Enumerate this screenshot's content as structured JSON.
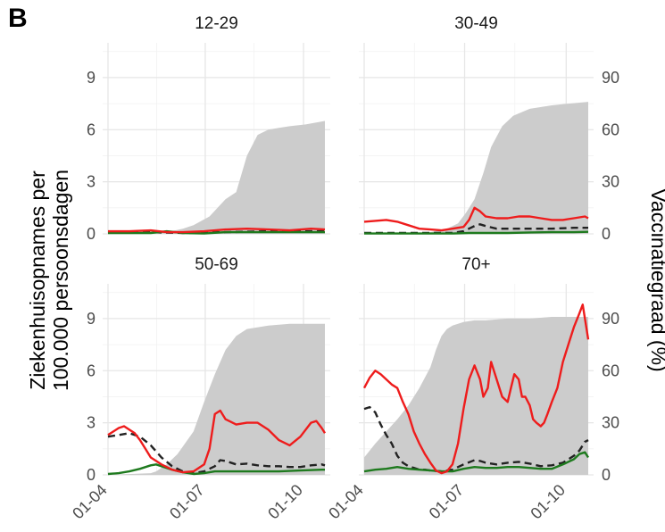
{
  "panel_label": "B",
  "colors": {
    "vaccination_fill": "#cccccc",
    "hospital_unvaccinated": "#ee1c1c",
    "hospital_all": "#222222",
    "hospital_vaccinated": "#1e7a1e",
    "grid": "#e6e6e6"
  },
  "chart_data": {
    "type": "line",
    "title": "",
    "xlabel": "",
    "ylabel": "Ziekenhuisopnames per 100.000 persoonsdagen",
    "ylabel_lines": [
      "Ziekenhuisopnames per",
      "100.000 persoonsdagen"
    ],
    "y2label": "Vaccinatiegraad (%)",
    "x_ticks": [
      "01-04",
      "01-07",
      "01-10"
    ],
    "y_ticks": [
      "0",
      "3",
      "6",
      "9"
    ],
    "y2_ticks": [
      "0",
      "30",
      "60",
      "90"
    ],
    "ylim": [
      0,
      11
    ],
    "y2lim": [
      0,
      110
    ],
    "x_range_days": [
      0,
      203
    ],
    "x_tick_days": [
      0,
      91,
      183
    ],
    "legend": "none",
    "grid": true,
    "facets": [
      {
        "title": "12-29",
        "vaccination_area": {
          "x": [
            0,
            40,
            55,
            70,
            80,
            95,
            110,
            120,
            130,
            140,
            150,
            160,
            170,
            185,
            203
          ],
          "y": [
            0,
            0,
            1,
            3,
            5,
            10,
            20,
            24,
            45,
            57,
            60,
            61,
            62,
            63,
            65
          ]
        },
        "series": [
          {
            "key": "unvaccinated",
            "x": [
              0,
              20,
              40,
              55,
              70,
              90,
              110,
              130,
              150,
              170,
              190,
              203
            ],
            "y": [
              0.15,
              0.15,
              0.2,
              0.1,
              0.1,
              0.15,
              0.25,
              0.3,
              0.25,
              0.2,
              0.3,
              0.25
            ]
          },
          {
            "key": "all",
            "x": [
              0,
              40,
              70,
              110,
              150,
              203
            ],
            "y": [
              0.1,
              0.1,
              0.05,
              0.1,
              0.15,
              0.15
            ]
          },
          {
            "key": "vaccinated",
            "x": [
              0,
              40,
              55,
              70,
              90,
              110,
              150,
              203
            ],
            "y": [
              0.05,
              0.05,
              0.15,
              0.05,
              0.02,
              0.1,
              0.1,
              0.1
            ]
          }
        ]
      },
      {
        "title": "30-49",
        "vaccination_area": {
          "x": [
            0,
            50,
            60,
            75,
            85,
            92,
            100,
            108,
            115,
            125,
            135,
            150,
            170,
            185,
            203
          ],
          "y": [
            0,
            0,
            1,
            3,
            6,
            12,
            20,
            35,
            50,
            62,
            68,
            72,
            74,
            75,
            76
          ]
        },
        "series": [
          {
            "key": "unvaccinated",
            "x": [
              0,
              10,
              20,
              30,
              40,
              50,
              60,
              70,
              80,
              90,
              95,
              100,
              105,
              110,
              120,
              130,
              140,
              150,
              160,
              170,
              180,
              190,
              200,
              203
            ],
            "y": [
              0.7,
              0.75,
              0.8,
              0.7,
              0.5,
              0.3,
              0.25,
              0.2,
              0.3,
              0.4,
              0.8,
              1.5,
              1.3,
              1.0,
              0.9,
              0.9,
              1.0,
              1.0,
              0.9,
              0.8,
              0.8,
              0.9,
              1.0,
              0.9
            ]
          },
          {
            "key": "all",
            "x": [
              0,
              40,
              60,
              80,
              90,
              100,
              105,
              110,
              120,
              130,
              150,
              170,
              190,
              203
            ],
            "y": [
              0.05,
              0.05,
              0.05,
              0.05,
              0.15,
              0.45,
              0.55,
              0.45,
              0.3,
              0.3,
              0.3,
              0.3,
              0.35,
              0.35
            ]
          },
          {
            "key": "vaccinated",
            "x": [
              0,
              40,
              60,
              80,
              95,
              110,
              130,
              150,
              170,
              190,
              203
            ],
            "y": [
              0.02,
              0.02,
              0.02,
              0.02,
              0.05,
              0.05,
              0.05,
              0.08,
              0.1,
              0.1,
              0.12
            ]
          }
        ]
      },
      {
        "title": "50-69",
        "vaccination_area": {
          "x": [
            0,
            40,
            45,
            55,
            65,
            80,
            90,
            100,
            110,
            120,
            130,
            150,
            170,
            203
          ],
          "y": [
            0,
            1,
            2,
            6,
            12,
            25,
            42,
            58,
            72,
            80,
            84,
            86,
            87,
            87
          ]
        },
        "series": [
          {
            "key": "unvaccinated",
            "x": [
              0,
              5,
              10,
              15,
              20,
              25,
              30,
              35,
              40,
              50,
              60,
              70,
              80,
              90,
              95,
              100,
              105,
              110,
              120,
              130,
              140,
              150,
              160,
              170,
              180,
              190,
              195,
              200,
              203
            ],
            "y": [
              2.3,
              2.5,
              2.7,
              2.8,
              2.6,
              2.4,
              2.0,
              1.5,
              1.0,
              0.6,
              0.3,
              0.15,
              0.2,
              0.6,
              1.5,
              3.5,
              3.7,
              3.2,
              2.9,
              3.0,
              3.0,
              2.6,
              2.0,
              1.7,
              2.2,
              3.0,
              3.1,
              2.7,
              2.4
            ]
          },
          {
            "key": "all",
            "x": [
              0,
              10,
              20,
              30,
              40,
              50,
              60,
              70,
              80,
              90,
              100,
              105,
              110,
              120,
              130,
              140,
              150,
              160,
              170,
              180,
              190,
              200,
              203
            ],
            "y": [
              2.2,
              2.3,
              2.4,
              2.2,
              1.7,
              1.0,
              0.5,
              0.2,
              0.1,
              0.2,
              0.5,
              0.85,
              0.8,
              0.6,
              0.65,
              0.55,
              0.5,
              0.5,
              0.45,
              0.45,
              0.55,
              0.6,
              0.55
            ]
          },
          {
            "key": "vaccinated",
            "x": [
              0,
              10,
              20,
              30,
              40,
              45,
              50,
              60,
              70,
              80,
              90,
              100,
              120,
              140,
              160,
              180,
              200,
              203
            ],
            "y": [
              0.05,
              0.1,
              0.2,
              0.35,
              0.55,
              0.6,
              0.5,
              0.3,
              0.15,
              0.05,
              0.1,
              0.2,
              0.2,
              0.2,
              0.2,
              0.25,
              0.3,
              0.3
            ]
          }
        ]
      },
      {
        "title": "70+",
        "vaccination_area": {
          "x": [
            0,
            10,
            20,
            30,
            40,
            50,
            60,
            65,
            70,
            75,
            80,
            85,
            90,
            100,
            110,
            130,
            150,
            170,
            190,
            203
          ],
          "y": [
            10,
            18,
            25,
            32,
            40,
            50,
            62,
            72,
            80,
            84,
            86,
            87,
            88,
            89,
            89,
            90,
            90,
            91,
            91,
            91
          ]
        },
        "series": [
          {
            "key": "unvaccinated",
            "x": [
              0,
              5,
              10,
              15,
              20,
              25,
              30,
              35,
              40,
              45,
              50,
              55,
              60,
              65,
              70,
              75,
              80,
              85,
              90,
              95,
              100,
              105,
              108,
              112,
              115,
              120,
              125,
              130,
              133,
              136,
              140,
              143,
              146,
              150,
              153,
              156,
              160,
              163,
              166,
              170,
              175,
              180,
              185,
              190,
              195,
              198,
              200,
              203
            ],
            "y": [
              5.0,
              5.6,
              6.0,
              5.8,
              5.5,
              5.2,
              5.0,
              4.2,
              3.5,
              2.5,
              1.8,
              1.2,
              0.7,
              0.25,
              0.1,
              0.2,
              0.6,
              1.8,
              3.8,
              5.5,
              6.3,
              5.5,
              4.5,
              5.0,
              6.5,
              5.5,
              4.5,
              4.2,
              5.0,
              5.8,
              5.5,
              4.5,
              4.5,
              4.0,
              3.2,
              3.0,
              2.8,
              3.0,
              3.5,
              4.2,
              5.0,
              6.5,
              7.5,
              8.5,
              9.3,
              9.8,
              9.0,
              7.8
            ]
          },
          {
            "key": "all",
            "x": [
              0,
              5,
              10,
              15,
              20,
              25,
              30,
              35,
              40,
              45,
              50,
              55,
              60,
              70,
              80,
              90,
              100,
              105,
              110,
              120,
              130,
              140,
              150,
              160,
              170,
              180,
              190,
              195,
              200,
              203
            ],
            "y": [
              3.8,
              3.9,
              3.6,
              2.9,
              2.3,
              1.8,
              1.1,
              0.7,
              0.5,
              0.4,
              0.3,
              0.3,
              0.25,
              0.2,
              0.3,
              0.6,
              0.85,
              0.8,
              0.7,
              0.6,
              0.7,
              0.75,
              0.65,
              0.5,
              0.55,
              0.7,
              1.1,
              1.4,
              1.9,
              2.0
            ]
          },
          {
            "key": "vaccinated",
            "x": [
              0,
              10,
              20,
              30,
              40,
              50,
              60,
              70,
              80,
              90,
              100,
              110,
              120,
              130,
              140,
              150,
              160,
              170,
              180,
              190,
              195,
              200,
              203
            ],
            "y": [
              0.2,
              0.3,
              0.35,
              0.45,
              0.35,
              0.3,
              0.25,
              0.2,
              0.2,
              0.35,
              0.45,
              0.4,
              0.4,
              0.45,
              0.45,
              0.4,
              0.35,
              0.35,
              0.6,
              0.9,
              1.2,
              1.3,
              1.0
            ]
          }
        ]
      }
    ]
  }
}
